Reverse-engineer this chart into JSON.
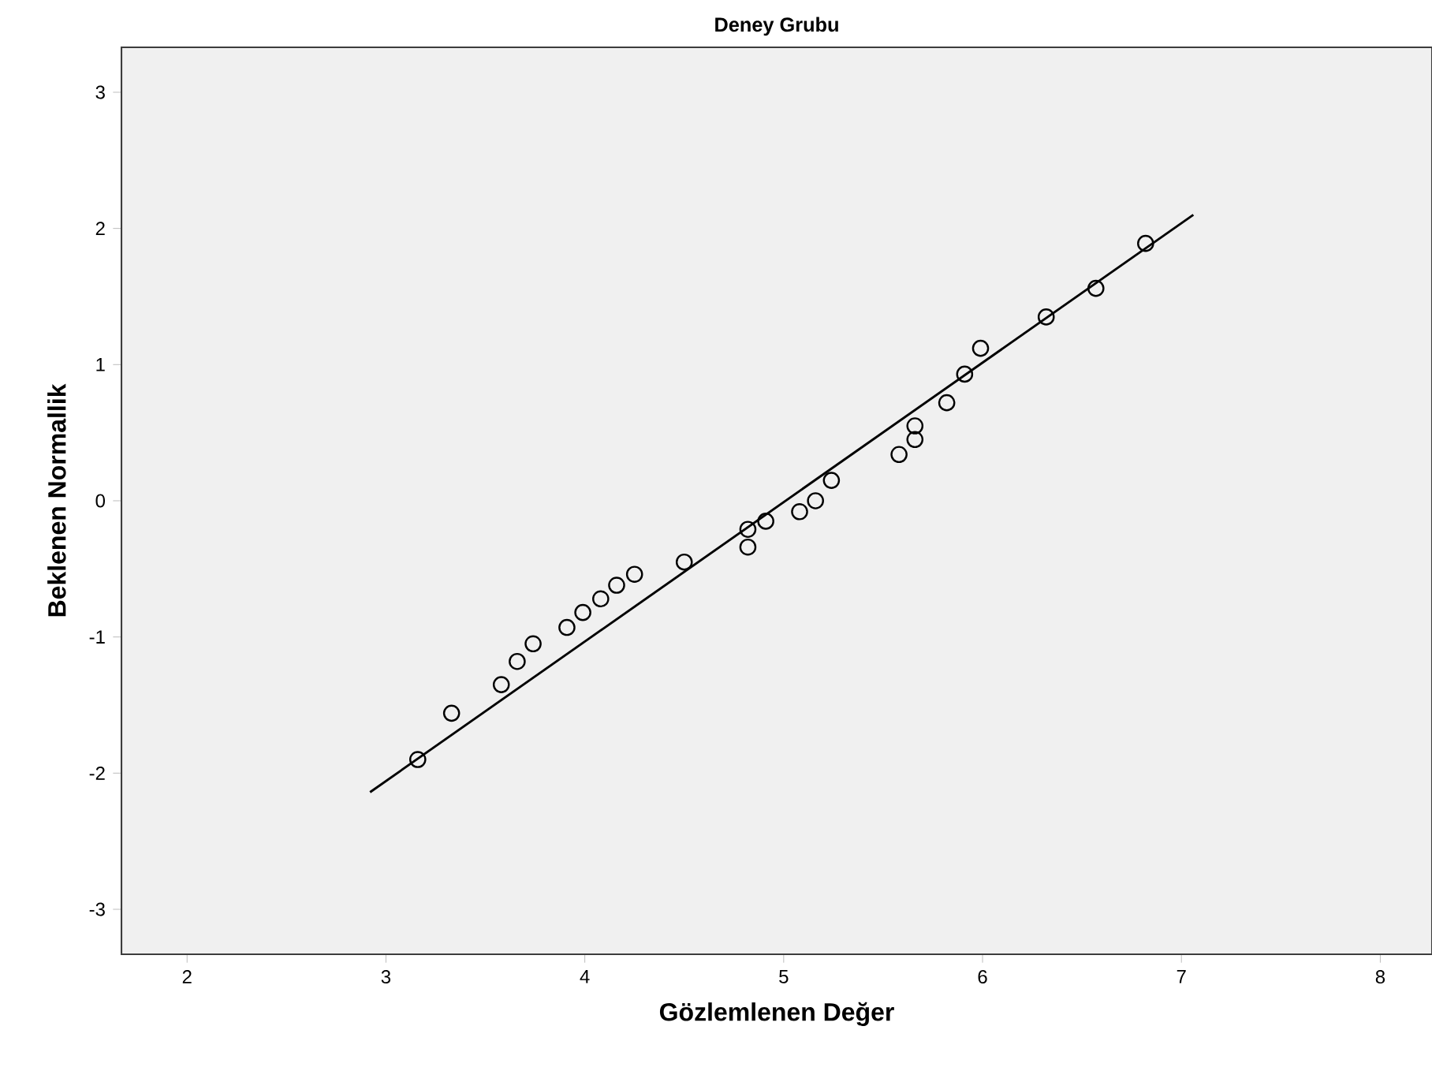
{
  "chart_data": {
    "type": "scatter",
    "title": "Deney Grubu",
    "xlabel": "Gözlemlenen Değer",
    "ylabel": "Beklenen Normallik",
    "xlim": [
      1.67,
      8.26
    ],
    "ylim": [
      -3.33,
      3.33
    ],
    "xticks": [
      2,
      3,
      4,
      5,
      6,
      7,
      8
    ],
    "yticks": [
      -3,
      -2,
      -1,
      0,
      1,
      2,
      3
    ],
    "grid": false,
    "series": [
      {
        "color": "#000000",
        "marker": "circle",
        "x": [
          3.16,
          3.33,
          3.58,
          3.66,
          3.74,
          3.91,
          3.99,
          4.08,
          4.16,
          4.25,
          4.5,
          4.82,
          4.82,
          4.91,
          5.08,
          5.16,
          5.24,
          5.58,
          5.66,
          5.66,
          5.82,
          5.91,
          5.99,
          6.32,
          6.57,
          6.82
        ],
        "values": [
          -1.9,
          -1.56,
          -1.35,
          -1.18,
          -1.05,
          -0.93,
          -0.82,
          -0.72,
          -0.62,
          -0.54,
          -0.45,
          -0.34,
          -0.21,
          -0.15,
          -0.08,
          0.0,
          0.15,
          0.34,
          0.45,
          0.55,
          0.72,
          0.93,
          1.12,
          1.35,
          1.56,
          1.89
        ]
      },
      {
        "type": "line",
        "color": "#000000",
        "marker": "none",
        "line_style": "solid",
        "x": [
          2.92,
          7.06
        ],
        "values": [
          -2.14,
          2.1
        ]
      }
    ]
  }
}
